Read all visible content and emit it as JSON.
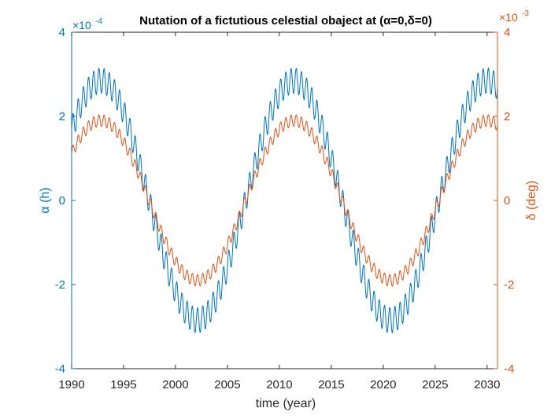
{
  "chart_data": {
    "type": "line",
    "title": "Nutation of a fictutious celestial obaject at (α=0,δ=0)",
    "xlabel": "time (year)",
    "ylabel_left": "α (h)",
    "ylabel_right": "δ (deg)",
    "xlim": [
      1990,
      2031
    ],
    "ylim_left": [
      -4,
      4
    ],
    "ylim_right": [
      -4,
      4
    ],
    "left_exponent_label": "×10",
    "left_exponent_power": "-4",
    "right_exponent_label": "×10",
    "right_exponent_power": "-3",
    "x_ticks": [
      1990,
      1995,
      2000,
      2005,
      2010,
      2015,
      2020,
      2025,
      2030
    ],
    "left_ticks": [
      -4,
      -2,
      0,
      2,
      4
    ],
    "right_ticks": [
      -4,
      -2,
      0,
      2,
      4
    ],
    "colors": {
      "alpha": "#0072BD",
      "delta": "#D95319",
      "axis": "#262626"
    },
    "series": [
      {
        "name": "α",
        "axis": "left",
        "color": "#0072BD",
        "model": {
          "x_start": 1990,
          "x_end": 2031,
          "offset": 0,
          "main_amplitude": 2.85,
          "main_period": 18.6,
          "main_peak_year": 1992.8,
          "ripple_amplitude": 0.3,
          "ripple_period": 0.5
        }
      },
      {
        "name": "δ",
        "axis": "right",
        "color": "#D95319",
        "model": {
          "x_start": 1990,
          "x_end": 2031,
          "offset": 0,
          "main_amplitude": 1.9,
          "main_period": 18.6,
          "main_peak_year": 1992.8,
          "ripple_amplitude": 0.14,
          "ripple_period": 0.5
        }
      }
    ]
  }
}
